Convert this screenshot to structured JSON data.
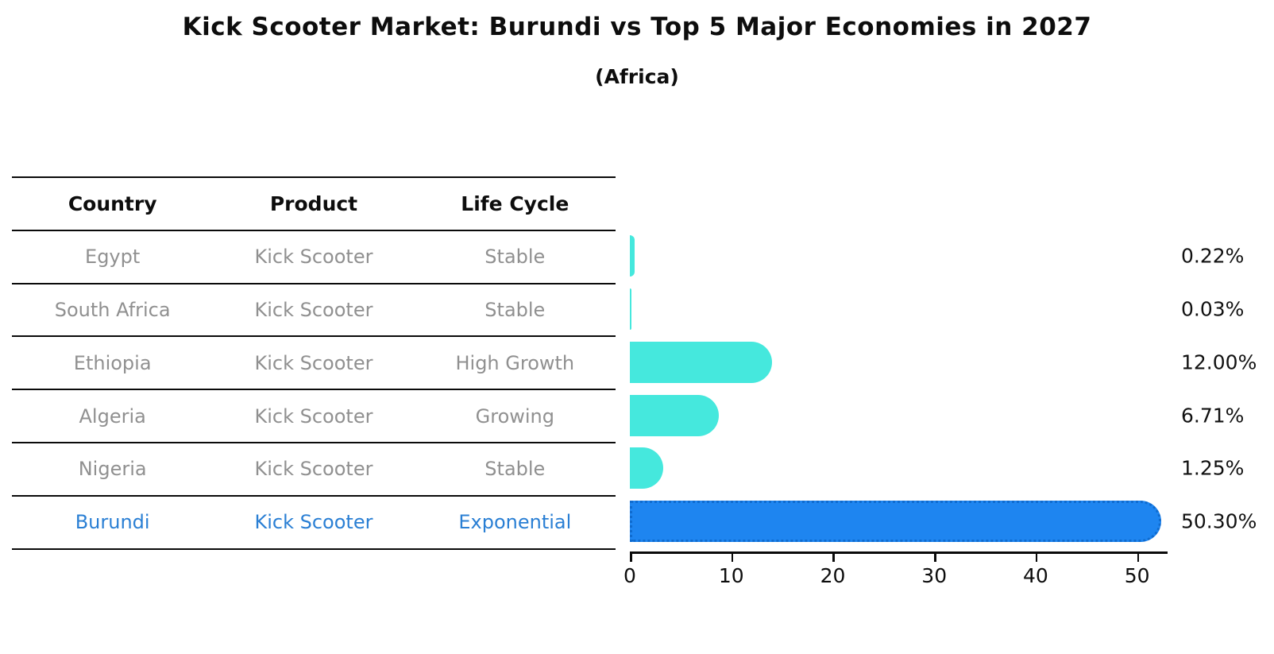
{
  "title": "Kick Scooter Market: Burundi vs Top 5 Major Economies in 2027",
  "subtitle": "(Africa)",
  "table": {
    "headers": [
      "Country",
      "Product",
      "Life Cycle"
    ],
    "rows": [
      {
        "country": "Egypt",
        "product": "Kick Scooter",
        "life_cycle": "Stable",
        "highlight": false
      },
      {
        "country": "South Africa",
        "product": "Kick Scooter",
        "life_cycle": "Stable",
        "highlight": false
      },
      {
        "country": "Ethiopia",
        "product": "Kick Scooter",
        "life_cycle": "High Growth",
        "highlight": false
      },
      {
        "country": "Algeria",
        "product": "Kick Scooter",
        "life_cycle": "Growing",
        "highlight": false
      },
      {
        "country": "Nigeria",
        "product": "Kick Scooter",
        "life_cycle": "Stable",
        "highlight": false
      },
      {
        "country": "Burundi",
        "product": "Kick Scooter",
        "life_cycle": "Exponential",
        "highlight": true
      }
    ]
  },
  "chart_data": {
    "type": "bar",
    "orientation": "horizontal",
    "title": "Kick Scooter Market: Burundi vs Top 5 Major Economies in 2027",
    "subtitle": "(Africa)",
    "categories": [
      "Egypt",
      "South Africa",
      "Ethiopia",
      "Algeria",
      "Nigeria",
      "Burundi"
    ],
    "values": [
      0.22,
      0.03,
      12.0,
      6.71,
      1.25,
      50.3
    ],
    "value_labels": [
      "0.22%",
      "0.03%",
      "12.00%",
      "6.71%",
      "1.25%",
      "50.30%"
    ],
    "xlabel": "",
    "ylabel": "",
    "xlim": [
      0,
      53
    ],
    "xticks": [
      0,
      10,
      20,
      30,
      40,
      50
    ],
    "grid": false,
    "legend": false,
    "highlight_category": "Burundi"
  },
  "colors": {
    "bar": "#45e8dd",
    "highlight_bar": "#1e85f0",
    "highlight_border": "#0f6bcf",
    "highlight_text": "#2a7fd4",
    "body_text": "#909090",
    "header_text": "#0d0d0d",
    "axis": "#0a0a0a"
  }
}
